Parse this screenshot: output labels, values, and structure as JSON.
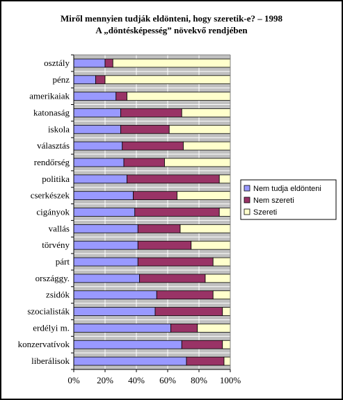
{
  "chart_data": {
    "type": "bar",
    "stacked": "percent",
    "orientation": "horizontal",
    "title": "Miről mennyien tudják eldönteni, hogy szeretik-e? – 1998",
    "subtitle": "A „döntésképesség” növekvő rendjében",
    "categories": [
      "osztály",
      "pénz",
      "amerikaiak",
      "katonaság",
      "iskola",
      "választás",
      "rendőrség",
      "politika",
      "cserkészek",
      "cigányok",
      "vallás",
      "törvény",
      "párt",
      "országgy.",
      "zsidók",
      "szocialisták",
      "erdélyi m.",
      "konzervatívok",
      "liberálisok"
    ],
    "series": [
      {
        "name": "Nem tudja eldönteni",
        "color": "#9999ff",
        "values": [
          20,
          14,
          27,
          30,
          30,
          31,
          32,
          34,
          38,
          39,
          41,
          41,
          41,
          42,
          53,
          52,
          62,
          69,
          72
        ]
      },
      {
        "name": "Nem szereti",
        "color": "#993366",
        "values": [
          5,
          6,
          7,
          39,
          31,
          39,
          26,
          59,
          28,
          54,
          27,
          34,
          48,
          42,
          36,
          43,
          17,
          26,
          24
        ]
      },
      {
        "name": "Szereti",
        "color": "#ffffcc",
        "values": [
          75,
          80,
          66,
          31,
          39,
          30,
          42,
          7,
          34,
          7,
          32,
          25,
          11,
          16,
          11,
          5,
          21,
          5,
          4
        ]
      }
    ],
    "xlim": [
      0,
      100
    ],
    "x_ticks": [
      "0%",
      "20%",
      "40%",
      "60%",
      "80%",
      "100%"
    ],
    "grid": true,
    "plot_background": "#c0c0c0",
    "legend_position": "right"
  }
}
